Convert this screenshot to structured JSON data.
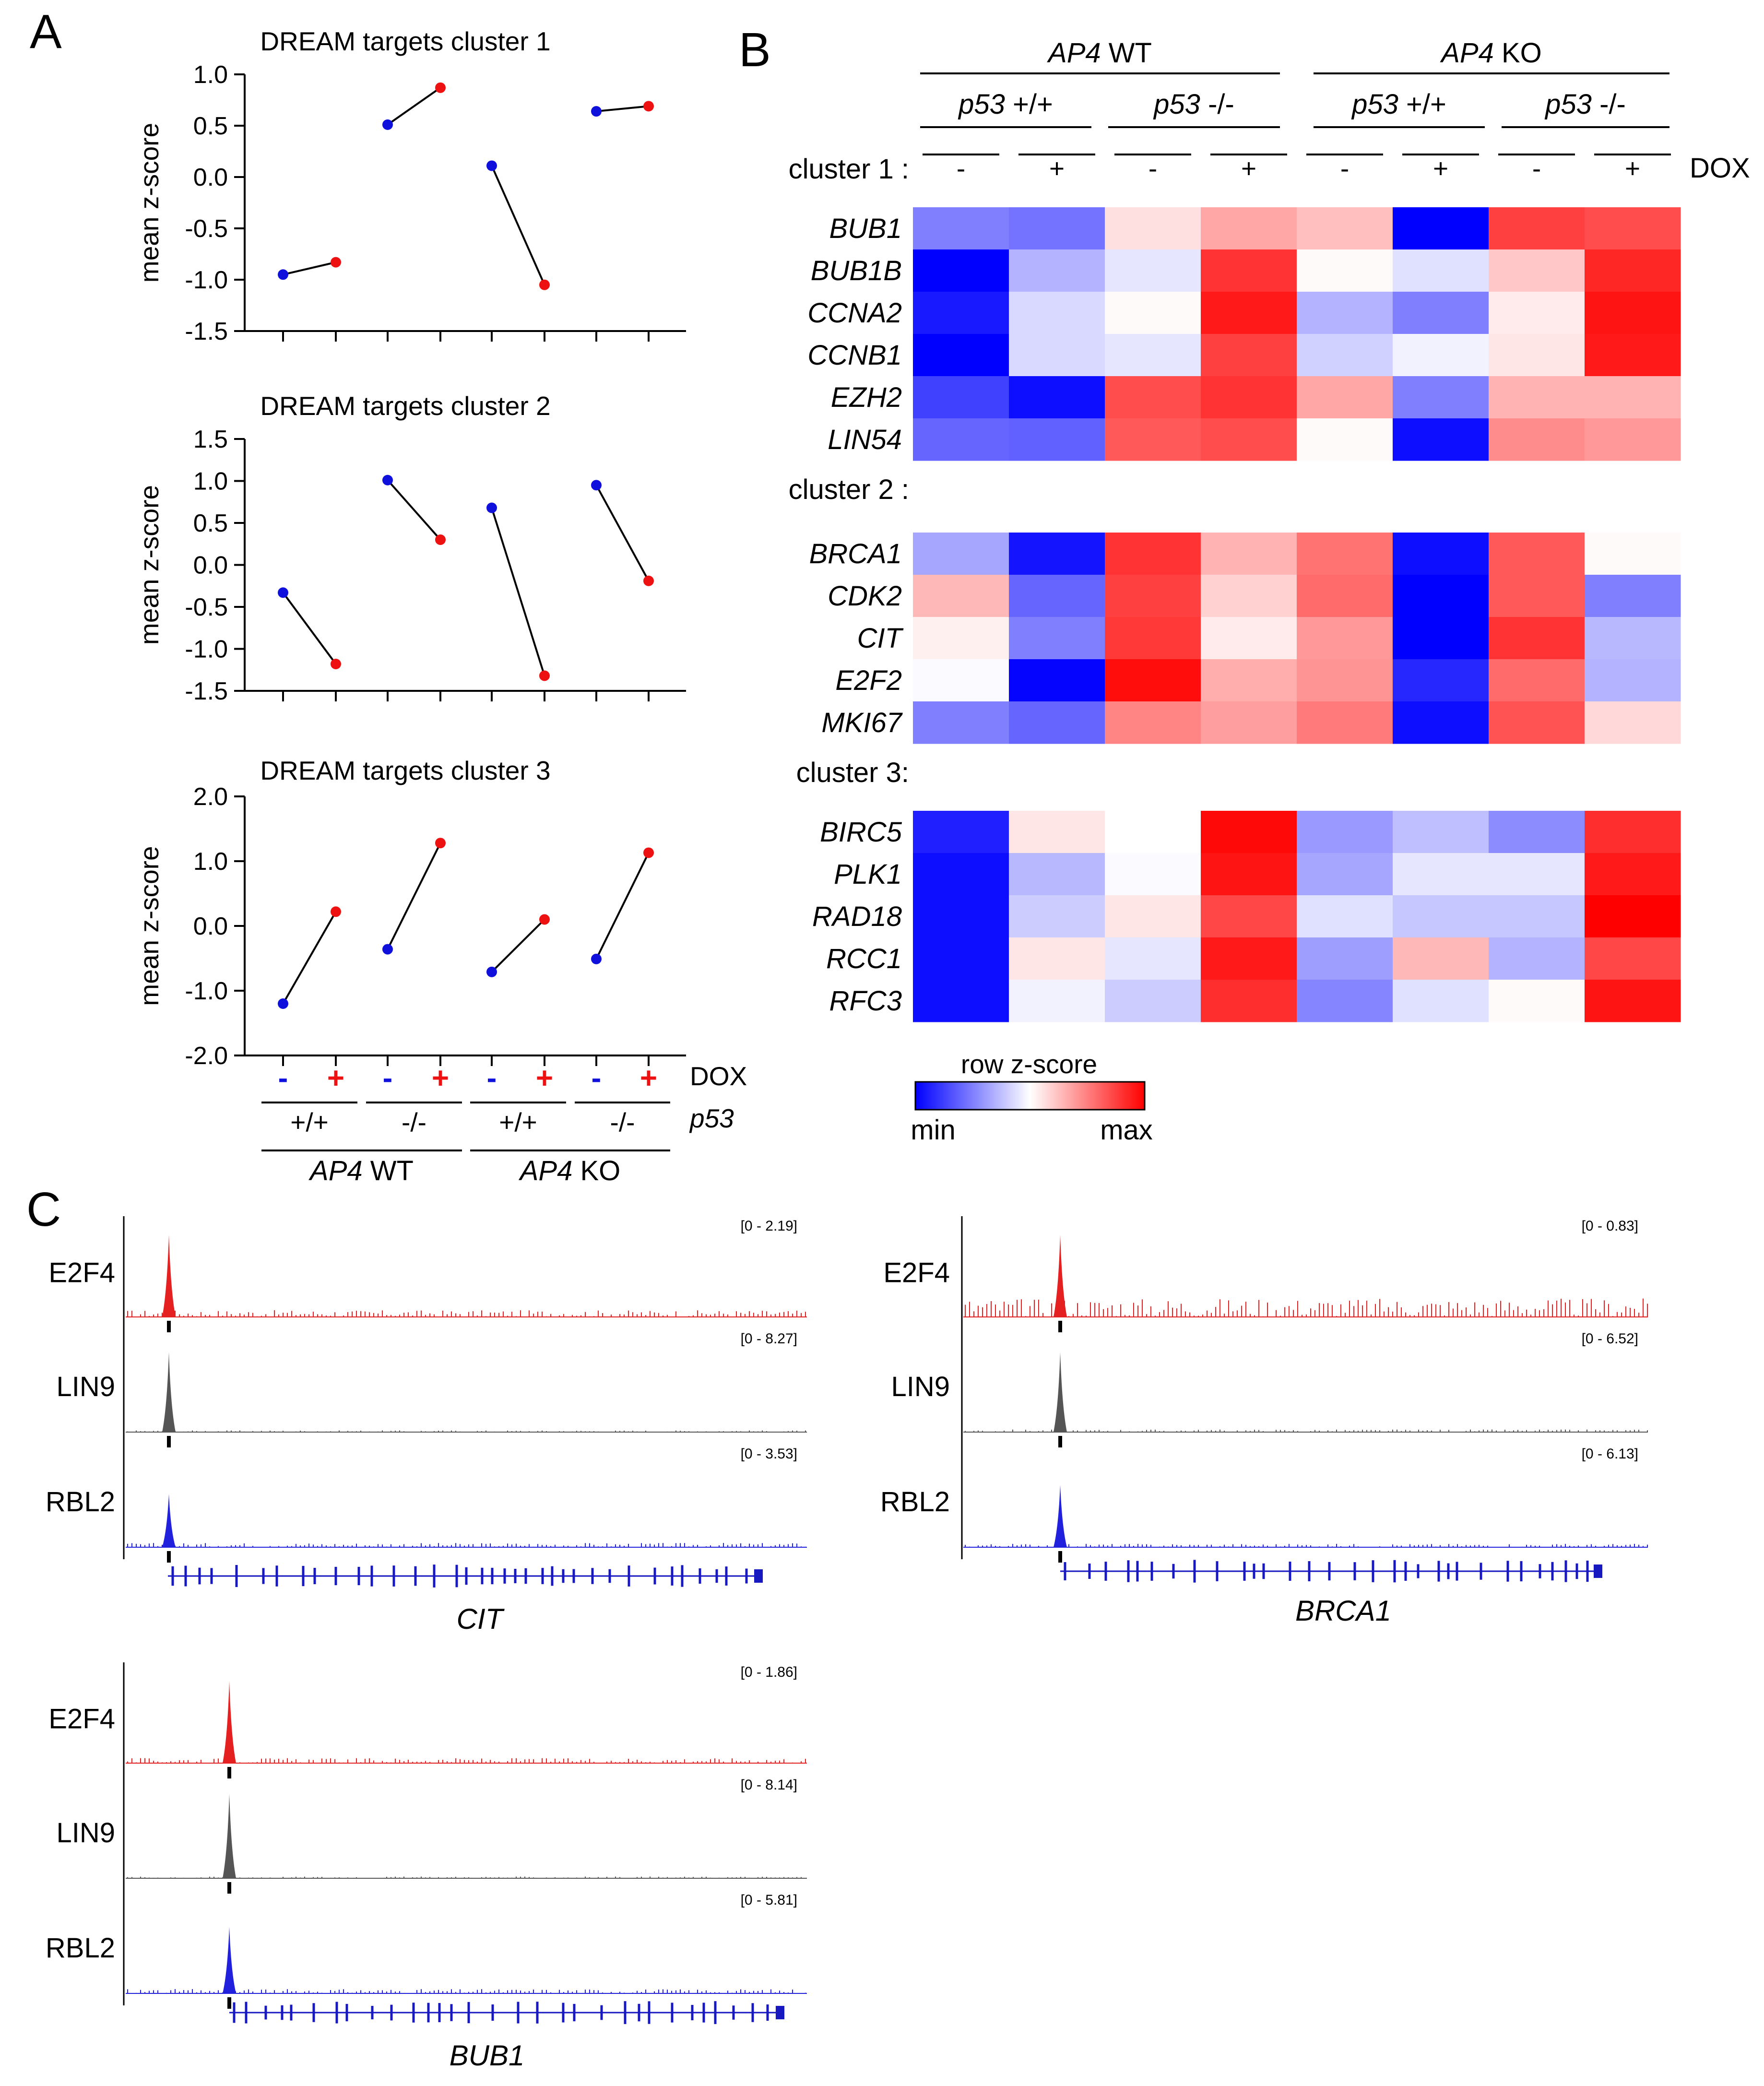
{
  "panels": {
    "A": "A",
    "B": "B",
    "C": "C"
  },
  "colors": {
    "minus": "#1010dd",
    "plus": "#ee1111",
    "e2f4": "#e52020",
    "lin9": "#555555",
    "rbl2": "#2020dd",
    "gene": "#1818c0",
    "min": "#0000ff",
    "mid": "#ffffff",
    "max": "#ff0000"
  },
  "lineplots": {
    "ylabel": "mean  z-score",
    "dox_label": "DOX",
    "p53_label": "p53",
    "signs": [
      "-",
      "+",
      "-",
      "+",
      "-",
      "+",
      "-",
      "+"
    ],
    "p53_groups": [
      "+/+",
      "-/-",
      "+/+",
      "-/-"
    ],
    "ap4_groups": [
      {
        "italic": "AP4",
        "rest": " WT"
      },
      {
        "italic": "AP4",
        "rest": " KO"
      }
    ]
  },
  "chart_data": [
    {
      "type": "line",
      "title": "DREAM targets cluster 1",
      "ylabel": "mean  z-score",
      "ylim": [
        -1.5,
        1.0
      ],
      "yticks": [
        "1.0",
        "0.5",
        "0.0",
        "-0.5",
        "-1.0",
        "-1.5"
      ],
      "ytick_values": [
        1.0,
        0.5,
        0.0,
        -0.5,
        -1.0,
        -1.5
      ],
      "pairs": [
        [
          -0.95,
          -0.83
        ],
        [
          0.51,
          0.87
        ],
        [
          0.11,
          -1.05
        ],
        [
          0.64,
          0.69
        ]
      ]
    },
    {
      "type": "line",
      "title": "DREAM targets cluster 2",
      "ylabel": "mean  z-score",
      "ylim": [
        -1.5,
        1.5
      ],
      "yticks": [
        "1.5",
        "1.0",
        "0.5",
        "0.0",
        "-0.5",
        "-1.0",
        "-1.5"
      ],
      "ytick_values": [
        1.5,
        1.0,
        0.5,
        0.0,
        -0.5,
        -1.0,
        -1.5
      ],
      "pairs": [
        [
          -0.33,
          -1.18
        ],
        [
          1.01,
          0.3
        ],
        [
          0.68,
          -1.32
        ],
        [
          0.95,
          -0.19
        ]
      ]
    },
    {
      "type": "line",
      "title": "DREAM targets cluster 3",
      "ylabel": "mean  z-score",
      "ylim": [
        -2.0,
        2.0
      ],
      "yticks": [
        "2.0",
        "1.0",
        "0.0",
        "-1.0",
        "-2.0"
      ],
      "ytick_values": [
        2.0,
        1.0,
        0.0,
        -1.0,
        -2.0
      ],
      "pairs": [
        [
          -1.2,
          0.22
        ],
        [
          -0.36,
          1.28
        ],
        [
          -0.71,
          0.1
        ],
        [
          -0.51,
          1.13
        ]
      ]
    },
    {
      "type": "heatmap",
      "columns_top": [
        {
          "italic": "AP4",
          "rest": " WT"
        },
        {
          "italic": "AP4",
          "rest": " KO"
        }
      ],
      "columns_mid": [
        {
          "italic": "p53",
          "rest": " +/+"
        },
        {
          "italic": "p53",
          "rest": " -/-"
        },
        {
          "italic": "p53",
          "rest": " +/+"
        },
        {
          "italic": "p53",
          "rest": " -/-"
        }
      ],
      "columns_signs": [
        "-",
        "+",
        "-",
        "+",
        "-",
        "+",
        "-",
        "+"
      ],
      "dox_label": "DOX",
      "clusters": [
        {
          "label": "cluster 1 :",
          "rows": [
            {
              "gene": "BUB1",
              "values": [
                -0.5,
                -0.55,
                0.12,
                0.35,
                0.25,
                -1.0,
                0.75,
                0.7
              ]
            },
            {
              "gene": "BUB1B",
              "values": [
                -1.0,
                -0.3,
                -0.1,
                0.8,
                0.02,
                -0.12,
                0.22,
                0.85
              ]
            },
            {
              "gene": "CCNA2",
              "values": [
                -0.9,
                -0.15,
                0.02,
                0.9,
                -0.3,
                -0.5,
                0.08,
                0.92
              ]
            },
            {
              "gene": "CCNB1",
              "values": [
                -1.0,
                -0.15,
                -0.1,
                0.75,
                -0.18,
                -0.05,
                0.1,
                0.9
              ]
            },
            {
              "gene": "EZH2",
              "values": [
                -0.75,
                -0.95,
                0.7,
                0.8,
                0.35,
                -0.5,
                0.3,
                0.3
              ]
            },
            {
              "gene": "LIN54",
              "values": [
                -0.6,
                -0.62,
                0.65,
                0.7,
                0.02,
                -0.95,
                0.45,
                0.4
              ]
            }
          ]
        },
        {
          "label": "cluster 2 :",
          "rows": [
            {
              "gene": "BRCA1",
              "values": [
                -0.35,
                -0.92,
                0.8,
                0.3,
                0.55,
                -0.95,
                0.65,
                0.02
              ]
            },
            {
              "gene": "CDK2",
              "values": [
                0.28,
                -0.6,
                0.75,
                0.18,
                0.58,
                -1.0,
                0.65,
                -0.5
              ]
            },
            {
              "gene": "CIT",
              "values": [
                0.06,
                -0.5,
                0.78,
                0.08,
                0.4,
                -1.0,
                0.8,
                -0.28
              ]
            },
            {
              "gene": "E2F2",
              "values": [
                -0.02,
                -0.98,
                0.95,
                0.32,
                0.42,
                -0.85,
                0.58,
                -0.3
              ]
            },
            {
              "gene": "MKI67",
              "values": [
                -0.5,
                -0.6,
                0.48,
                0.38,
                0.52,
                -0.95,
                0.68,
                0.15
              ]
            }
          ]
        },
        {
          "label": "cluster 3:",
          "rows": [
            {
              "gene": "BIRC5",
              "values": [
                -0.88,
                0.1,
                0.0,
                0.97,
                -0.4,
                -0.25,
                -0.45,
                0.82
              ]
            },
            {
              "gene": "PLK1",
              "values": [
                -0.95,
                -0.28,
                -0.02,
                0.92,
                -0.35,
                -0.1,
                -0.1,
                0.9
              ]
            },
            {
              "gene": "RAD18",
              "values": [
                -0.95,
                -0.2,
                0.1,
                0.72,
                -0.12,
                -0.22,
                -0.22,
                1.0
              ]
            },
            {
              "gene": "RCC1",
              "values": [
                -0.95,
                0.1,
                -0.1,
                0.9,
                -0.38,
                0.28,
                -0.3,
                0.72
              ]
            },
            {
              "gene": "RFC3",
              "values": [
                -0.95,
                -0.05,
                -0.2,
                0.82,
                -0.48,
                -0.12,
                0.02,
                0.92
              ]
            }
          ]
        }
      ],
      "legend": {
        "title": "row z-score",
        "min_label": "min",
        "max_label": "max"
      }
    },
    {
      "type": "track",
      "gene": "CIT",
      "tracks": [
        {
          "name": "E2F4",
          "range": "[0 - 2.19]",
          "color": "e2f4",
          "peak": 0.95
        },
        {
          "name": "LIN9",
          "range": "[0 - 8.27]",
          "color": "lin9",
          "peak": 0.9
        },
        {
          "name": "RBL2",
          "range": "[0 - 3.53]",
          "color": "rbl2",
          "peak": 0.6
        }
      ]
    },
    {
      "type": "track",
      "gene": "BRCA1",
      "tracks": [
        {
          "name": "E2F4",
          "range": "[0 - 0.83]",
          "color": "e2f4",
          "peak": 0.95
        },
        {
          "name": "LIN9",
          "range": "[0 - 6.52]",
          "color": "lin9",
          "peak": 0.9
        },
        {
          "name": "RBL2",
          "range": "[0 - 6.13]",
          "color": "rbl2",
          "peak": 0.7
        }
      ]
    },
    {
      "type": "track",
      "gene": "BUB1",
      "tracks": [
        {
          "name": "E2F4",
          "range": "[0 - 1.86]",
          "color": "e2f4",
          "peak": 0.95
        },
        {
          "name": "LIN9",
          "range": "[0 - 8.14]",
          "color": "lin9",
          "peak": 0.95
        },
        {
          "name": "RBL2",
          "range": "[0 - 5.81]",
          "color": "rbl2",
          "peak": 0.75
        }
      ]
    }
  ]
}
